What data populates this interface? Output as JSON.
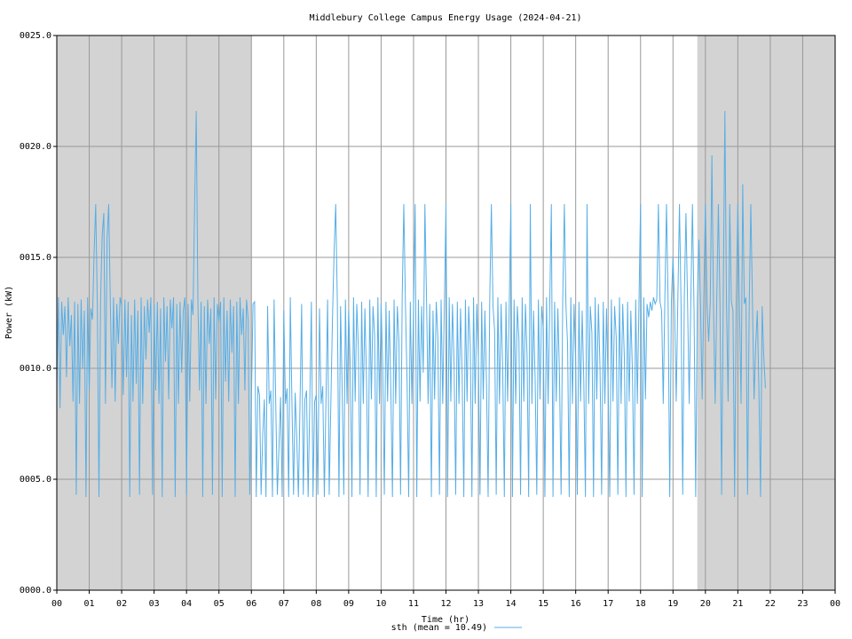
{
  "chart_data": {
    "type": "line",
    "title": "Middlebury College Campus Energy Usage (2024-04-21)",
    "xlabel": "Time (hr)",
    "ylabel": "Power (kW)",
    "xlim": [
      0,
      24
    ],
    "ylim": [
      0,
      25
    ],
    "x_ticks": [
      0,
      1,
      2,
      3,
      4,
      5,
      6,
      7,
      8,
      9,
      10,
      11,
      12,
      13,
      14,
      15,
      16,
      17,
      18,
      19,
      20,
      21,
      22,
      23,
      24
    ],
    "x_tick_labels": [
      "00",
      "01",
      "02",
      "03",
      "04",
      "05",
      "06",
      "07",
      "08",
      "09",
      "10",
      "11",
      "12",
      "13",
      "14",
      "15",
      "16",
      "17",
      "18",
      "19",
      "20",
      "21",
      "22",
      "23",
      "00"
    ],
    "y_ticks": [
      0,
      5,
      10,
      15,
      20,
      25
    ],
    "y_tick_labels": [
      "0000.0",
      "0005.0",
      "0010.0",
      "0015.0",
      "0020.0",
      "0025.0"
    ],
    "grid": true,
    "night_shading": [
      {
        "start": 0,
        "end": 6
      },
      {
        "start": 19.75,
        "end": 24
      }
    ],
    "shade_color": "#d3d3d3",
    "legend_position": "bottom-center",
    "series": [
      {
        "name": "sth (mean = 10.49)",
        "color": "#56aee6",
        "x_start": 0.0,
        "x_step": 0.05,
        "values": [
          9.2,
          13.2,
          8.2,
          13.0,
          11.5,
          12.8,
          9.6,
          13.2,
          11.0,
          12.4,
          8.5,
          13.0,
          4.3,
          12.9,
          8.4,
          13.1,
          10.0,
          12.6,
          4.2,
          13.2,
          9.0,
          12.7,
          12.2,
          15.2,
          17.4,
          12.8,
          4.2,
          13.1,
          16.0,
          17.0,
          8.4,
          15.8,
          17.4,
          13.0,
          9.1,
          13.2,
          8.5,
          12.9,
          11.1,
          13.2,
          12.8,
          8.8,
          13.1,
          9.6,
          13.0,
          4.2,
          12.4,
          8.5,
          13.1,
          9.3,
          12.6,
          4.3,
          13.2,
          8.4,
          12.8,
          10.4,
          13.1,
          11.6,
          13.2,
          4.3,
          12.9,
          9.0,
          13.0,
          8.4,
          12.7,
          4.2,
          13.2,
          10.3,
          12.8,
          8.6,
          13.1,
          11.8,
          13.2,
          4.2,
          12.9,
          8.4,
          13.0,
          9.8,
          12.6,
          13.2,
          4.3,
          12.9,
          8.5,
          13.1,
          12.4,
          17.4,
          21.6,
          13.2,
          9.0,
          13.0,
          4.2,
          12.8,
          8.4,
          13.1,
          11.1,
          12.7,
          4.3,
          13.2,
          8.6,
          12.9,
          12.1,
          13.0,
          4.2,
          13.2,
          9.4,
          12.6,
          8.5,
          13.1,
          10.7,
          12.8,
          4.2,
          13.0,
          8.4,
          13.2,
          11.5,
          12.7,
          9.0,
          13.1,
          12.2,
          4.3,
          8.5,
          12.9,
          13.0,
          4.2,
          9.2,
          8.8,
          4.3,
          7.0,
          8.6,
          4.2,
          12.8,
          8.4,
          9.0,
          4.2,
          13.1,
          8.5,
          4.3,
          6.4,
          8.7,
          4.2,
          12.6,
          8.4,
          9.1,
          4.2,
          13.2,
          8.5,
          4.3,
          8.9,
          6.8,
          4.2,
          8.4,
          12.9,
          4.3,
          8.6,
          9.0,
          4.2,
          8.4,
          13.0,
          4.2,
          8.5,
          8.8,
          4.3,
          12.7,
          8.4,
          9.2,
          4.2,
          8.6,
          13.1,
          4.3,
          8.4,
          12.2,
          15.2,
          17.4,
          13.0,
          4.2,
          12.8,
          9.0,
          4.3,
          13.1,
          8.4,
          12.6,
          10.0,
          4.2,
          13.2,
          8.5,
          12.9,
          10.9,
          4.3,
          13.0,
          8.4,
          12.7,
          9.5,
          4.2,
          13.1,
          8.6,
          12.8,
          11.5,
          4.2,
          13.2,
          8.4,
          12.9,
          10.1,
          4.3,
          13.0,
          8.5,
          12.6,
          9.0,
          4.2,
          13.1,
          8.4,
          12.8,
          11.2,
          4.3,
          13.2,
          17.4,
          12.9,
          9.4,
          4.2,
          13.0,
          8.4,
          12.7,
          17.4,
          4.2,
          13.1,
          8.5,
          12.8,
          9.8,
          17.4,
          13.2,
          8.4,
          12.9,
          4.2,
          12.6,
          8.6,
          13.0,
          11.4,
          4.3,
          13.1,
          8.4,
          12.8,
          17.4,
          4.2,
          13.2,
          8.5,
          12.9,
          10.2,
          4.3,
          13.0,
          8.4,
          12.7,
          9.6,
          4.2,
          13.1,
          8.5,
          12.8,
          11.0,
          4.2,
          13.2,
          8.4,
          12.9,
          10.4,
          4.3,
          13.0,
          8.6,
          12.6,
          9.3,
          4.2,
          13.1,
          17.4,
          12.8,
          11.7,
          4.3,
          13.2,
          8.4,
          12.9,
          9.9,
          4.2,
          13.0,
          8.5,
          12.7,
          17.4,
          4.2,
          13.1,
          8.4,
          12.8,
          11.3,
          4.3,
          13.2,
          8.5,
          12.9,
          10.6,
          4.2,
          17.4,
          8.4,
          12.6,
          9.5,
          4.3,
          13.1,
          8.6,
          12.8,
          11.8,
          4.2,
          13.2,
          8.4,
          12.9,
          17.4,
          4.2,
          13.0,
          8.5,
          12.7,
          9.7,
          4.3,
          13.1,
          17.4,
          12.8,
          11.1,
          4.2,
          13.2,
          8.4,
          12.9,
          10.3,
          4.3,
          13.0,
          8.5,
          12.6,
          9.4,
          4.2,
          17.4,
          8.4,
          12.8,
          11.6,
          4.2,
          13.2,
          8.6,
          12.9,
          10.0,
          4.3,
          13.0,
          8.4,
          12.7,
          9.2,
          4.2,
          13.1,
          8.5,
          12.8,
          11.4,
          4.3,
          13.2,
          8.4,
          12.9,
          10.5,
          4.2,
          13.0,
          8.5,
          12.6,
          9.8,
          4.3,
          13.1,
          8.4,
          12.8,
          17.4,
          4.2,
          13.2,
          8.6,
          12.9,
          12.3,
          13.0,
          12.6,
          13.2,
          12.9,
          13.1,
          17.4,
          13.0,
          12.6,
          8.4,
          13.2,
          17.4,
          12.9,
          4.2,
          13.0,
          15.0,
          12.8,
          8.5,
          13.1,
          17.4,
          12.7,
          4.3,
          13.2,
          17.0,
          12.9,
          8.4,
          13.0,
          17.4,
          12.6,
          4.2,
          13.1,
          15.8,
          12.8,
          8.6,
          13.2,
          17.4,
          12.9,
          11.2,
          13.0,
          19.6,
          12.7,
          8.4,
          13.1,
          17.4,
          12.8,
          4.3,
          13.2,
          21.6,
          12.9,
          8.5,
          17.4,
          13.0,
          12.6,
          4.2,
          13.1,
          17.4,
          12.8,
          8.4,
          18.3,
          12.9,
          13.2,
          4.3,
          12.7,
          17.4,
          13.0,
          8.6,
          11.0,
          12.6,
          9.0,
          4.2,
          12.8,
          10.5,
          9.1
        ]
      }
    ]
  }
}
